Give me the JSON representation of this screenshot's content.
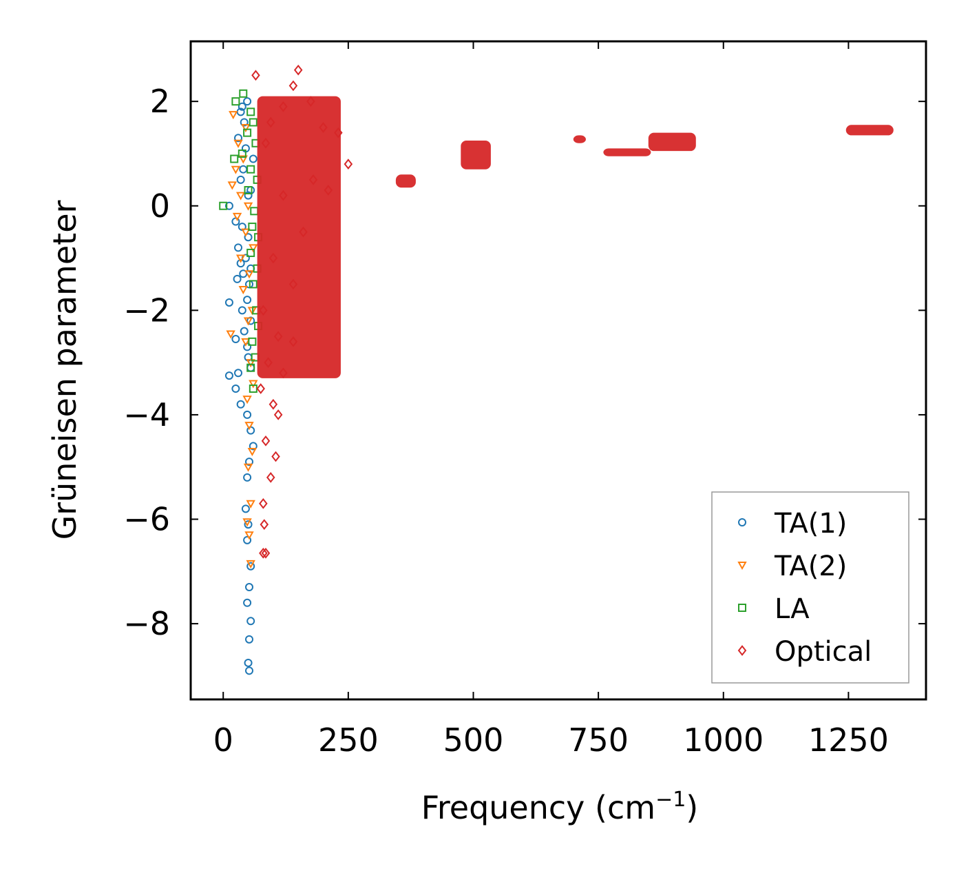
{
  "chart_data": {
    "type": "scatter",
    "title": "",
    "xlabel": "Frequency (cm",
    "xlabel_superscript": "−1",
    "xlabel_suffix": ")",
    "ylabel": "Grüneisen parameter",
    "xlim": [
      -65,
      1405
    ],
    "ylim": [
      -9.45,
      3.15
    ],
    "xticks": [
      0,
      250,
      500,
      750,
      1000,
      1250
    ],
    "xtick_labels": [
      "0",
      "250",
      "500",
      "750",
      "1000",
      "1250"
    ],
    "yticks": [
      2,
      0,
      -2,
      -4,
      -6,
      -8
    ],
    "ytick_labels": [
      "2",
      "0",
      "−2",
      "−4",
      "−6",
      "−8"
    ],
    "grid": false,
    "legend_position": "bottom-right",
    "series": [
      {
        "name": "TA(1)",
        "marker": "circle",
        "color": "#1f77b4",
        "points": [
          [
            48,
            2.0
          ],
          [
            38,
            1.9
          ],
          [
            35,
            1.8
          ],
          [
            42,
            1.6
          ],
          [
            30,
            1.3
          ],
          [
            45,
            1.1
          ],
          [
            60,
            0.9
          ],
          [
            40,
            0.7
          ],
          [
            35,
            0.5
          ],
          [
            55,
            0.3
          ],
          [
            50,
            0.2
          ],
          [
            12,
            0.0
          ],
          [
            25,
            -0.3
          ],
          [
            38,
            -0.4
          ],
          [
            50,
            -0.6
          ],
          [
            30,
            -0.8
          ],
          [
            45,
            -1.0
          ],
          [
            35,
            -1.1
          ],
          [
            55,
            -1.2
          ],
          [
            40,
            -1.3
          ],
          [
            28,
            -1.4
          ],
          [
            52,
            -1.5
          ],
          [
            48,
            -1.8
          ],
          [
            12,
            -1.85
          ],
          [
            38,
            -2.0
          ],
          [
            55,
            -2.2
          ],
          [
            42,
            -2.4
          ],
          [
            25,
            -2.55
          ],
          [
            48,
            -2.7
          ],
          [
            50,
            -2.9
          ],
          [
            55,
            -3.1
          ],
          [
            12,
            -3.25
          ],
          [
            30,
            -3.2
          ],
          [
            25,
            -3.5
          ],
          [
            35,
            -3.8
          ],
          [
            48,
            -4.0
          ],
          [
            55,
            -4.3
          ],
          [
            60,
            -4.6
          ],
          [
            52,
            -4.9
          ],
          [
            48,
            -5.2
          ],
          [
            45,
            -5.8
          ],
          [
            50,
            -6.1
          ],
          [
            48,
            -6.4
          ],
          [
            55,
            -6.9
          ],
          [
            52,
            -7.3
          ],
          [
            48,
            -7.6
          ],
          [
            55,
            -7.95
          ],
          [
            52,
            -8.3
          ],
          [
            50,
            -8.75
          ],
          [
            52,
            -8.9
          ]
        ]
      },
      {
        "name": "TA(2)",
        "marker": "triangle-down",
        "color": "#ff7f0e",
        "points": [
          [
            20,
            1.75
          ],
          [
            45,
            1.5
          ],
          [
            30,
            1.2
          ],
          [
            40,
            0.9
          ],
          [
            25,
            0.7
          ],
          [
            18,
            0.4
          ],
          [
            35,
            0.2
          ],
          [
            50,
            0.0
          ],
          [
            28,
            -0.2
          ],
          [
            45,
            -0.5
          ],
          [
            60,
            -0.8
          ],
          [
            35,
            -1.0
          ],
          [
            52,
            -1.3
          ],
          [
            40,
            -1.6
          ],
          [
            58,
            -2.0
          ],
          [
            50,
            -2.2
          ],
          [
            15,
            -2.45
          ],
          [
            45,
            -2.6
          ],
          [
            55,
            -3.0
          ],
          [
            60,
            -3.4
          ],
          [
            48,
            -3.7
          ],
          [
            52,
            -4.2
          ],
          [
            58,
            -4.7
          ],
          [
            50,
            -5.0
          ],
          [
            55,
            -5.7
          ],
          [
            48,
            -6.05
          ],
          [
            52,
            -6.3
          ],
          [
            55,
            -6.85
          ]
        ]
      },
      {
        "name": "LA",
        "marker": "square",
        "color": "#2ca02c",
        "points": [
          [
            40,
            2.15
          ],
          [
            25,
            2.0
          ],
          [
            55,
            1.8
          ],
          [
            60,
            1.6
          ],
          [
            48,
            1.4
          ],
          [
            65,
            1.2
          ],
          [
            38,
            1.0
          ],
          [
            22,
            0.9
          ],
          [
            55,
            0.7
          ],
          [
            68,
            0.5
          ],
          [
            50,
            0.3
          ],
          [
            0,
            0.0
          ],
          [
            62,
            -0.1
          ],
          [
            58,
            -0.4
          ],
          [
            70,
            -0.6
          ],
          [
            55,
            -0.9
          ],
          [
            68,
            -1.2
          ],
          [
            60,
            -1.5
          ],
          [
            66,
            -2.0
          ],
          [
            70,
            -2.3
          ],
          [
            58,
            -2.6
          ],
          [
            64,
            -2.9
          ],
          [
            55,
            -3.1
          ],
          [
            60,
            -3.5
          ]
        ]
      },
      {
        "name": "Optical",
        "marker": "diamond",
        "color": "#d62728",
        "points": [
          [
            150,
            2.6
          ],
          [
            65,
            2.5
          ],
          [
            140,
            2.3
          ],
          [
            175,
            2.0
          ],
          [
            120,
            1.9
          ],
          [
            95,
            1.6
          ],
          [
            200,
            1.5
          ],
          [
            230,
            1.4
          ],
          [
            85,
            1.2
          ],
          [
            250,
            0.8
          ],
          [
            180,
            0.5
          ],
          [
            120,
            0.2
          ],
          [
            210,
            0.3
          ],
          [
            160,
            -0.5
          ],
          [
            100,
            -1.0
          ],
          [
            140,
            -1.5
          ],
          [
            80,
            -2.0
          ],
          [
            110,
            -2.5
          ],
          [
            140,
            -2.6
          ],
          [
            90,
            -3.0
          ],
          [
            120,
            -3.2
          ],
          [
            75,
            -3.5
          ],
          [
            100,
            -3.8
          ],
          [
            110,
            -4.0
          ],
          [
            85,
            -4.5
          ],
          [
            105,
            -4.8
          ],
          [
            95,
            -5.2
          ],
          [
            80,
            -5.7
          ],
          [
            82,
            -6.1
          ],
          [
            80,
            -6.65
          ],
          [
            85,
            -6.65
          ]
        ],
        "clusters": [
          {
            "x_range": [
              68,
              235
            ],
            "y_range": [
              -3.3,
              2.1
            ]
          },
          {
            "x_range": [
              345,
              385
            ],
            "y_range": [
              0.35,
              0.6
            ]
          },
          {
            "x_range": [
              475,
              535
            ],
            "y_range": [
              0.7,
              1.25
            ]
          },
          {
            "x_range": [
              700,
              725
            ],
            "y_range": [
              1.2,
              1.35
            ]
          },
          {
            "x_range": [
              760,
              855
            ],
            "y_range": [
              0.95,
              1.1
            ]
          },
          {
            "x_range": [
              850,
              945
            ],
            "y_range": [
              1.05,
              1.4
            ]
          },
          {
            "x_range": [
              1245,
              1340
            ],
            "y_range": [
              1.35,
              1.55
            ]
          }
        ]
      }
    ]
  }
}
